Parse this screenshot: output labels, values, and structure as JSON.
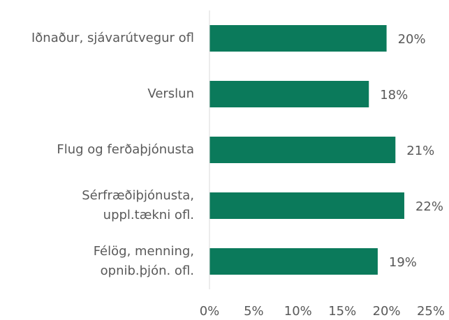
{
  "chart_data": {
    "type": "bar",
    "orientation": "horizontal",
    "categories": [
      [
        "Iðnaður, sjávarútvegur ofl"
      ],
      [
        "Verslun"
      ],
      [
        "Flug og ferðaþjónusta"
      ],
      [
        "Sérfræðiþjónusta,",
        "uppl.tækni ofl."
      ],
      [
        "Félög, menning,",
        "opnib.þjón. ofl."
      ]
    ],
    "values": [
      20,
      18,
      21,
      22,
      19
    ],
    "value_labels": [
      "20%",
      "18%",
      "21%",
      "22%",
      "19%"
    ],
    "color": "#0b7a5b",
    "xlim": [
      0,
      25
    ],
    "xticks": [
      {
        "value": 0,
        "label": "0%"
      },
      {
        "value": 5,
        "label": "5%"
      },
      {
        "value": 10,
        "label": "10%"
      },
      {
        "value": 15,
        "label": "15%"
      },
      {
        "value": 20,
        "label": "20%"
      },
      {
        "value": 25,
        "label": "25%"
      }
    ],
    "grid": false
  }
}
